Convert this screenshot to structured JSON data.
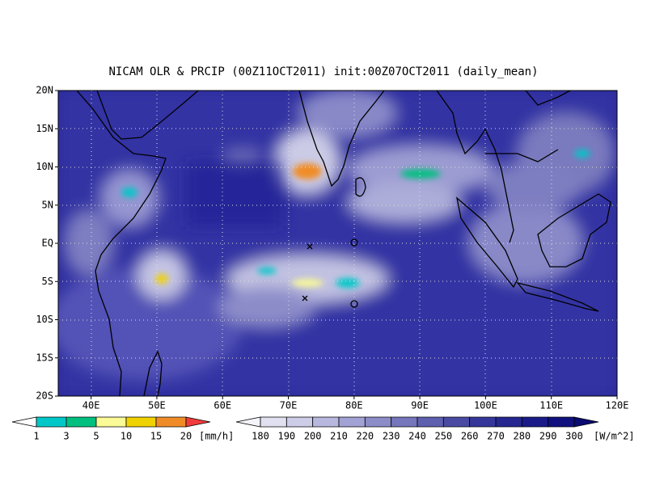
{
  "title": "NICAM OLR & PRCIP (00Z11OCT2011) init:00Z07OCT2011 (daily_mean)",
  "lat_labels": [
    "20N",
    "15N",
    "10N",
    "5N",
    "EQ",
    "5S",
    "10S",
    "15S",
    "20S"
  ],
  "lon_labels": [
    "40E",
    "50E",
    "60E",
    "70E",
    "80E",
    "90E",
    "100E",
    "110E",
    "120E"
  ],
  "precip_colorbar": {
    "labels": [
      1,
      3,
      5,
      10,
      15,
      20
    ],
    "unit": "[mm/h]",
    "colors": [
      "#ffffff",
      "#00c8c8",
      "#00c080",
      "#fafa96",
      "#f0d200",
      "#f08c28",
      "#f03c3c"
    ]
  },
  "olr_colorbar": {
    "labels": [
      180,
      190,
      200,
      210,
      220,
      230,
      240,
      250,
      260,
      270,
      280,
      290,
      300
    ],
    "unit": "[W/m^2]",
    "colors": [
      "#f4f4fa",
      "#e0e0f0",
      "#cdcde8",
      "#b8b8de",
      "#a2a2d4",
      "#8c8cc8",
      "#7676bc",
      "#5f5fb0",
      "#4a4aa4",
      "#36369a",
      "#262690",
      "#1a1a88",
      "#10107e",
      "#0a0a70"
    ]
  }
}
